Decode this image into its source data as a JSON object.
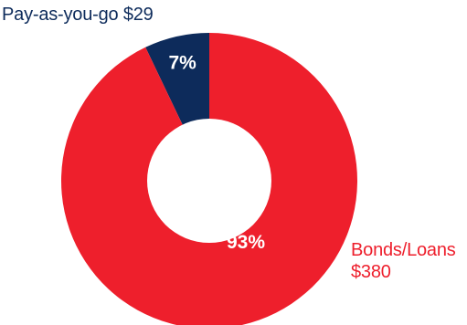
{
  "chart_data": {
    "type": "pie",
    "title": "",
    "donut": true,
    "slices": [
      {
        "label": "Pay-as-you-go",
        "value": 29,
        "value_text": "$29",
        "percent_text": "7%",
        "color": "#0d2b5b"
      },
      {
        "label": "Bonds/Loans",
        "value": 380,
        "value_text": "$380",
        "percent_text": "93%",
        "color": "#ee1f2c"
      }
    ],
    "label_colors": {
      "Pay-as-you-go": "#0d2b5b",
      "Bonds/Loans": "#ee1f2c"
    }
  }
}
